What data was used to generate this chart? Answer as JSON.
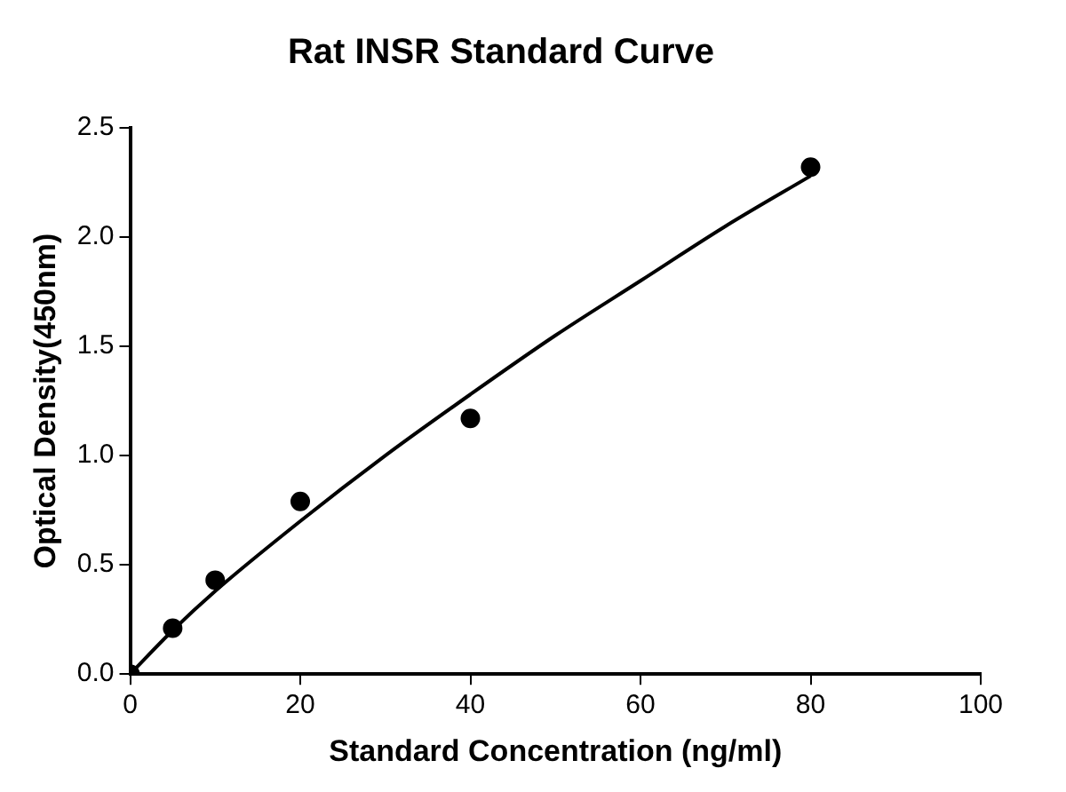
{
  "chart_data": {
    "type": "scatter",
    "title": "Rat INSR Standard Curve",
    "xlabel": "Standard Concentration (ng/ml)",
    "ylabel": "Optical Density(450nm)",
    "series": [
      {
        "color": "#000000",
        "marker": "circle",
        "x": [
          0,
          5,
          10,
          20,
          40,
          80
        ],
        "values": [
          0.0,
          0.21,
          0.43,
          0.79,
          1.17,
          2.32
        ]
      },
      {
        "type": "line",
        "marker": "none",
        "color": "#000000",
        "x": [
          0,
          5,
          10,
          20,
          30,
          40,
          50,
          60,
          70,
          80
        ],
        "values": [
          0.0,
          0.2,
          0.38,
          0.7,
          1.0,
          1.28,
          1.55,
          1.8,
          2.05,
          2.28
        ]
      }
    ],
    "xlim": [
      0,
      100
    ],
    "xticks": [
      0,
      20,
      40,
      60,
      80,
      100
    ],
    "ylim": [
      0,
      2.5
    ],
    "yticks": [
      {
        "value": 0,
        "label": "0.0"
      },
      {
        "value": 0.5,
        "label": "0.5"
      },
      {
        "value": 1,
        "label": "1.0"
      },
      {
        "value": 1.5,
        "label": "1.5"
      },
      {
        "value": 2,
        "label": "2.0"
      },
      {
        "value": 2.5,
        "label": "2.5"
      }
    ],
    "grid": false,
    "legend": false,
    "line_style": "solid"
  }
}
